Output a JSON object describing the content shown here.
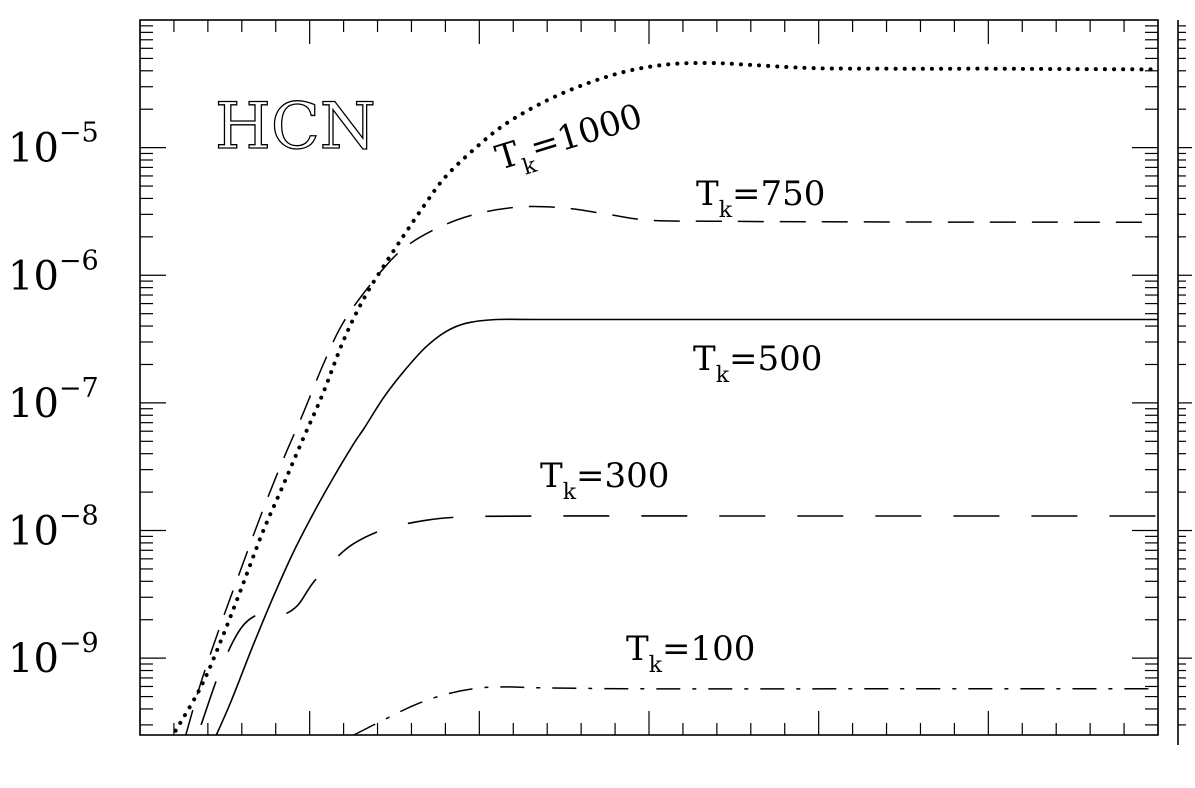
{
  "chart_data": {
    "type": "line",
    "title": "",
    "xlabel": "",
    "ylabel": "",
    "species_label": "HCN",
    "yscale": "log",
    "ylim": [
      2.5e-10,
      0.0001
    ],
    "xlim": [
      0,
      100
    ],
    "grid": false,
    "ytick_labels": [
      {
        "value": 1e-09,
        "base": "10",
        "exp": "−9"
      },
      {
        "value": 1e-08,
        "base": "10",
        "exp": "−8"
      },
      {
        "value": 1e-07,
        "base": "10",
        "exp": "−7"
      },
      {
        "value": 1e-06,
        "base": "10",
        "exp": "−6"
      },
      {
        "value": 1e-05,
        "base": "10",
        "exp": "−5"
      }
    ],
    "series": [
      {
        "name": "T_k=1000",
        "label_main": "T",
        "label_sub": "k",
        "label_rest": "=1000",
        "style": "dotted",
        "points": [
          [
            3.5,
            2.7e-10
          ],
          [
            6,
            6e-10
          ],
          [
            8,
            1.4e-09
          ],
          [
            10,
            3.6e-09
          ],
          [
            12,
            9.5e-09
          ],
          [
            14,
            2.2e-08
          ],
          [
            16,
            5.2e-08
          ],
          [
            18,
            1.2e-07
          ],
          [
            20,
            3.1e-07
          ],
          [
            22,
            6.6e-07
          ],
          [
            24,
            1.2e-06
          ],
          [
            26,
            2.1e-06
          ],
          [
            28,
            3.6e-06
          ],
          [
            30,
            5.9e-06
          ],
          [
            33,
            1e-05
          ],
          [
            36,
            1.55e-05
          ],
          [
            40,
            2.35e-05
          ],
          [
            44,
            3.2e-05
          ],
          [
            48,
            4e-05
          ],
          [
            52,
            4.5e-05
          ],
          [
            56,
            4.6e-05
          ],
          [
            60,
            4.45e-05
          ],
          [
            66,
            4.2e-05
          ],
          [
            74,
            4.15e-05
          ],
          [
            84,
            4.15e-05
          ],
          [
            100,
            4.1e-05
          ]
        ]
      },
      {
        "name": "T_k=750",
        "label_main": "T",
        "label_sub": "k",
        "label_rest": "=750",
        "style": "dashed",
        "points": [
          [
            4.5,
            2.5e-10
          ],
          [
            6,
            6.5e-10
          ],
          [
            8,
            1.9e-09
          ],
          [
            10,
            5.2e-09
          ],
          [
            12,
            1.4e-08
          ],
          [
            14,
            3.5e-08
          ],
          [
            16,
            8.2e-08
          ],
          [
            18,
            2e-07
          ],
          [
            20,
            4.3e-07
          ],
          [
            23,
            9.2e-07
          ],
          [
            26,
            1.65e-06
          ],
          [
            30,
            2.5e-06
          ],
          [
            34,
            3.15e-06
          ],
          [
            38,
            3.45e-06
          ],
          [
            42,
            3.35e-06
          ],
          [
            46,
            3e-06
          ],
          [
            50,
            2.7e-06
          ],
          [
            56,
            2.65e-06
          ],
          [
            70,
            2.62e-06
          ],
          [
            100,
            2.6e-06
          ]
        ]
      },
      {
        "name": "T_k=500",
        "label_main": "T",
        "label_sub": "k",
        "label_rest": "=500",
        "style": "solid",
        "points": [
          [
            7.5,
            2.5e-10
          ],
          [
            9,
            4.7e-10
          ],
          [
            11,
            1.2e-09
          ],
          [
            13,
            2.9e-09
          ],
          [
            15,
            6.6e-09
          ],
          [
            17,
            1.35e-08
          ],
          [
            19,
            2.6e-08
          ],
          [
            21,
            4.8e-08
          ],
          [
            22,
            6.3e-08
          ],
          [
            24,
            1.12e-07
          ],
          [
            26,
            1.8e-07
          ],
          [
            28,
            2.7e-07
          ],
          [
            30,
            3.6e-07
          ],
          [
            32,
            4.2e-07
          ],
          [
            35,
            4.5e-07
          ],
          [
            40,
            4.5e-07
          ],
          [
            60,
            4.5e-07
          ],
          [
            100,
            4.5e-07
          ]
        ]
      },
      {
        "name": "T_k=300",
        "label_main": "T",
        "label_sub": "k",
        "label_rest": "=300",
        "style": "longdash",
        "points": [
          [
            6,
            3e-10
          ],
          [
            8,
            8.5e-10
          ],
          [
            10,
            1.75e-09
          ],
          [
            12,
            2.25e-09
          ],
          [
            14,
            2.2e-09
          ],
          [
            15.5,
            2.6e-09
          ],
          [
            17,
            3.9e-09
          ],
          [
            19,
            5.8e-09
          ],
          [
            21,
            7.9e-09
          ],
          [
            24,
            1.02e-08
          ],
          [
            28,
            1.2e-08
          ],
          [
            32,
            1.28e-08
          ],
          [
            40,
            1.3e-08
          ],
          [
            60,
            1.3e-08
          ],
          [
            100,
            1.3e-08
          ]
        ]
      },
      {
        "name": "T_k=100",
        "label_main": "T",
        "label_sub": "k",
        "label_rest": "=100",
        "style": "dashdot",
        "points": [
          [
            21,
            2.5e-10
          ],
          [
            24,
            3.3e-10
          ],
          [
            27,
            4.3e-10
          ],
          [
            30,
            5.2e-10
          ],
          [
            33,
            5.8e-10
          ],
          [
            36,
            5.95e-10
          ],
          [
            40,
            5.85e-10
          ],
          [
            50,
            5.75e-10
          ],
          [
            70,
            5.75e-10
          ],
          [
            100,
            5.75e-10
          ]
        ]
      }
    ]
  }
}
